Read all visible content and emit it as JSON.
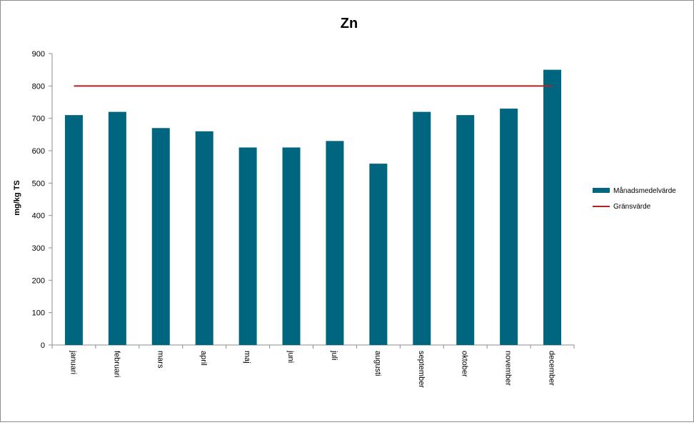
{
  "chart_data": {
    "type": "bar",
    "title": "Zn",
    "xlabel": "",
    "ylabel": "mg/kg TS",
    "ylim": [
      0,
      900
    ],
    "yticks": [
      0,
      100,
      200,
      300,
      400,
      500,
      600,
      700,
      800,
      900
    ],
    "categories": [
      "januari",
      "februari",
      "mars",
      "april",
      "maj",
      "juni",
      "juli",
      "augusti",
      "september",
      "oktober",
      "november",
      "december"
    ],
    "series": [
      {
        "name": "Månadsmedelvärde",
        "type": "bar",
        "color": "#006680",
        "values": [
          710,
          720,
          670,
          660,
          610,
          610,
          630,
          560,
          720,
          710,
          730,
          850
        ]
      },
      {
        "name": "Gränsvärde",
        "type": "line",
        "color": "#b22222",
        "values": [
          800,
          800,
          800,
          800,
          800,
          800,
          800,
          800,
          800,
          800,
          800,
          800
        ]
      }
    ],
    "grid": false,
    "legend_position": "right"
  }
}
